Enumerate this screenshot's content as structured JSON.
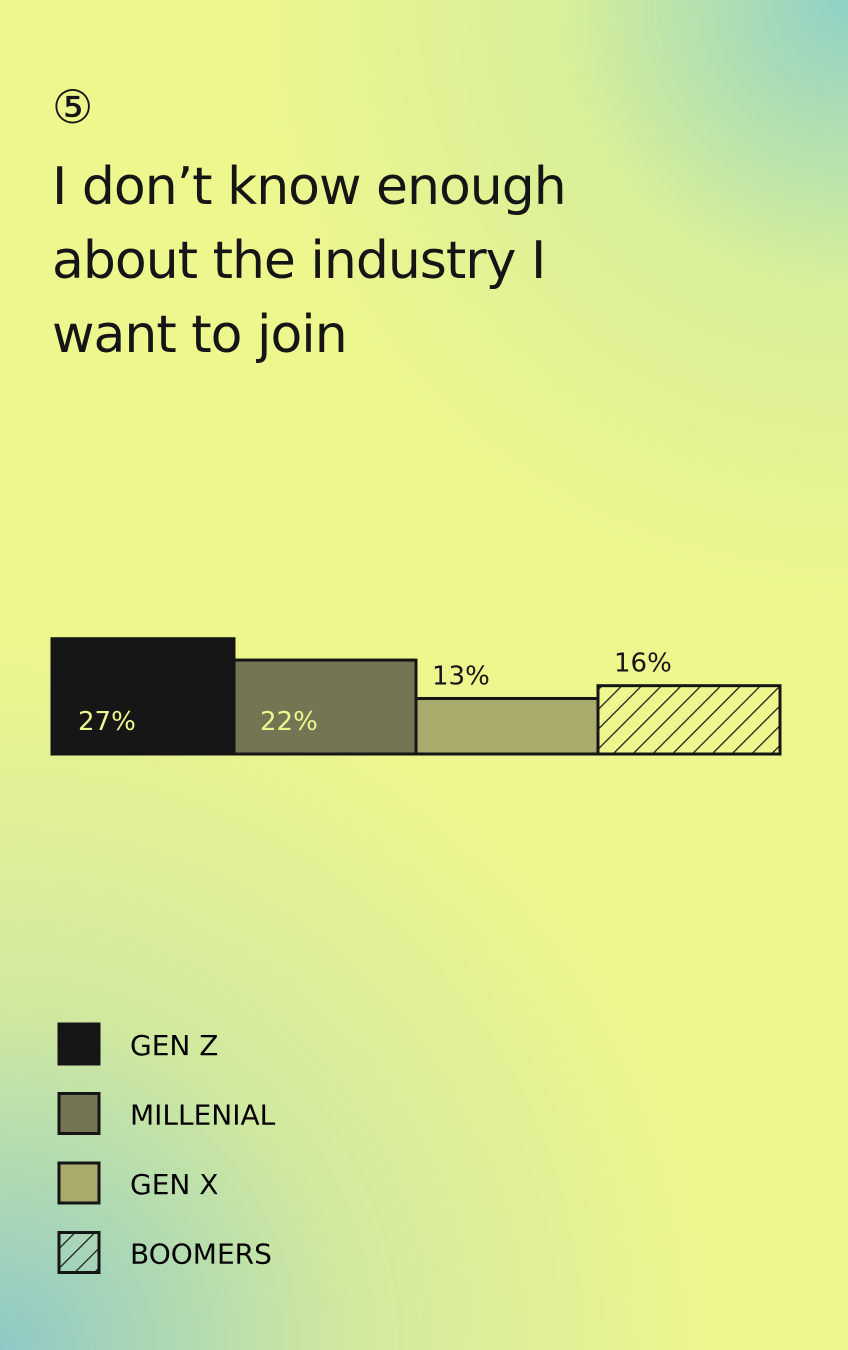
{
  "chart_data": {
    "type": "bar",
    "number": "⑤",
    "title": "I don’t know enough about the industry I want to join",
    "series": [
      {
        "name": "GEN Z",
        "color": "#161616",
        "values": [
          27
        ],
        "value_labels": [
          "27%"
        ]
      },
      {
        "name": "MILLENIAL",
        "color": "#737553",
        "values": [
          22
        ],
        "value_labels": [
          "22%"
        ]
      },
      {
        "name": "GEN X",
        "color": "#a9ab6d",
        "values": [
          13
        ],
        "value_labels": [
          "13%"
        ]
      },
      {
        "name": "BOOMERS",
        "color": "#1a1a1a",
        "pattern": "hatch",
        "values": [
          16
        ],
        "value_labels": [
          "16%"
        ]
      }
    ]
  }
}
